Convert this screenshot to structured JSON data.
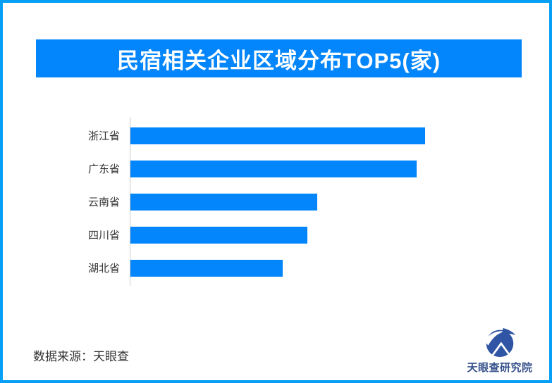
{
  "title": "民宿相关企业区域分布TOP5(家)",
  "colors": {
    "frame_border": "#05A0F6",
    "banner_bg": "#0385FB",
    "banner_text": "#FFFFFF",
    "bar_fill": "#0385FB",
    "axis_line": "#CCCCCC",
    "label_text": "#333333",
    "source_text": "#333333",
    "logo_blue": "#2F55A4",
    "logo_text": "#35508C"
  },
  "chart_data": {
    "type": "bar",
    "orientation": "horizontal",
    "title": "民宿相关企业区域分布TOP5(家)",
    "unit": "家",
    "categories": [
      "浙江省",
      "广东省",
      "云南省",
      "四川省",
      "湖北省"
    ],
    "values": [
      418,
      406,
      265,
      251,
      216
    ],
    "values_note": "no numeric value labels or axis ticks are shown in the image; values are relative bar lengths measured in screenshot pixels",
    "xlabel": "",
    "ylabel": "",
    "grid": false,
    "legend": false,
    "bar_color": "#0385FB"
  },
  "footer": {
    "source_label": "数据来源：天眼查",
    "brand_name": "天眼查研究院"
  },
  "icons": {
    "brand_logo": "tianyancha-eye-logo"
  }
}
